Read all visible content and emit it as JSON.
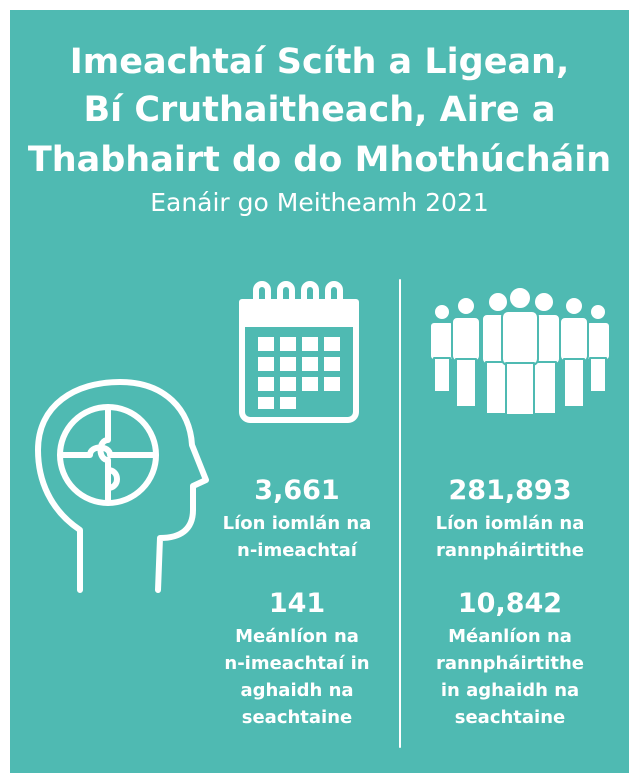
{
  "title_lines": [
    "Imeachtaí Scíth a Ligean,",
    "Bí Cruthaitheach, Aire a",
    "Thabhairt do do Mhothúcháin"
  ],
  "subtitle": "Eanáir go Meitheamh 2021",
  "stats": [
    {
      "value": "3,661",
      "label_lines": [
        "Líon iomlán na",
        "n-imeachtaí"
      ]
    },
    {
      "value": "141",
      "label_lines": [
        "Meánlíon na",
        "n-imeachtaí in",
        "aghaidh na",
        "seachtaine"
      ]
    },
    {
      "value": "281,893",
      "label_lines": [
        "Líon iomlán na",
        "rannpháirtithe"
      ]
    },
    {
      "value": "10,842",
      "label_lines": [
        "Méanlíon na",
        "rannpháirtithe",
        "in aghaidh na",
        "seachtaine"
      ]
    }
  ]
}
